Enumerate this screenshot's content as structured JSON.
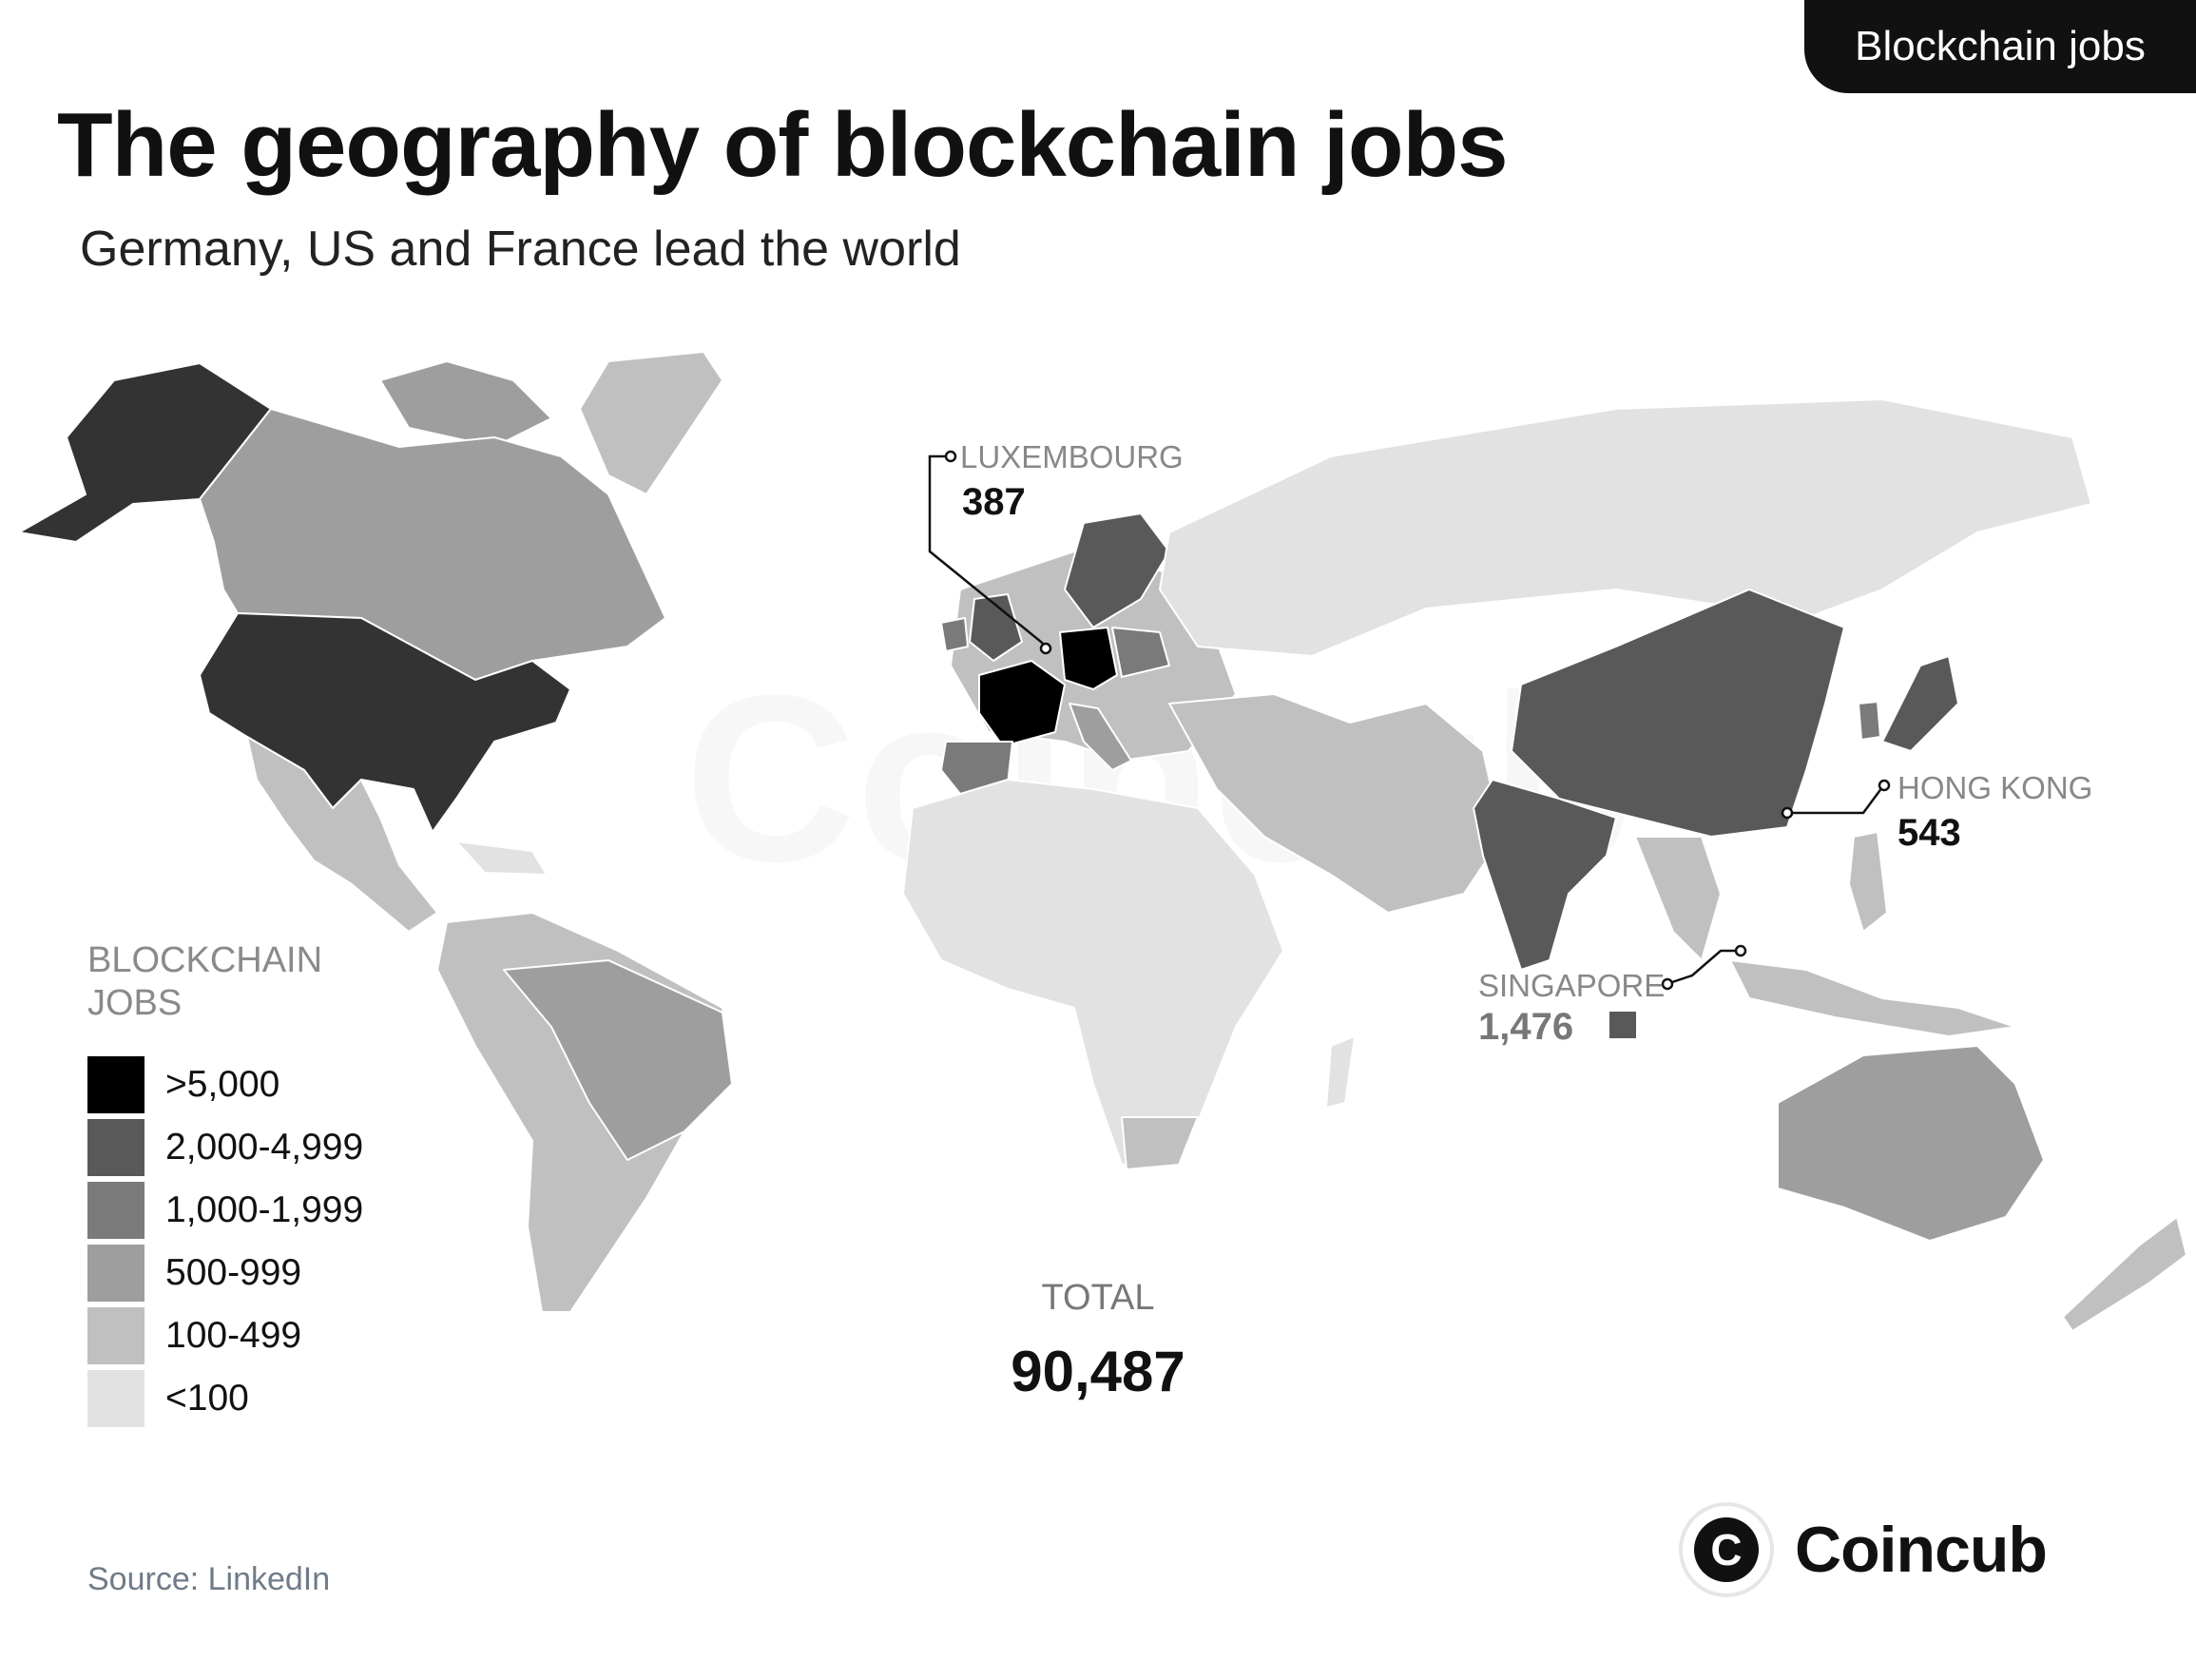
{
  "badge": "Blockchain jobs",
  "title": "The geography of blockchain jobs",
  "subtitle": "Germany, US and France lead the world",
  "legend": {
    "title": "BLOCKCHAIN JOBS",
    "items": [
      {
        "label": ">5,000",
        "color": "#000000"
      },
      {
        "label": "2,000-4,999",
        "color": "#595959"
      },
      {
        "label": "1,000-1,999",
        "color": "#7a7a7a"
      },
      {
        "label": "500-999",
        "color": "#9e9e9e"
      },
      {
        "label": "100-499",
        "color": "#c0c0c0"
      },
      {
        "label": "<100",
        "color": "#e2e2e2"
      }
    ]
  },
  "callouts": [
    {
      "name": "LUXEMBOURG",
      "value": "387"
    },
    {
      "name": "HONG KONG",
      "value": "543"
    },
    {
      "name": "SINGAPORE",
      "value": "1,476"
    }
  ],
  "total": {
    "label": "TOTAL",
    "value": "90,487"
  },
  "source": "Source: LinkedIn",
  "brand": {
    "name": "Coincub",
    "logo_letter": "C"
  },
  "watermark": "Coincub"
}
